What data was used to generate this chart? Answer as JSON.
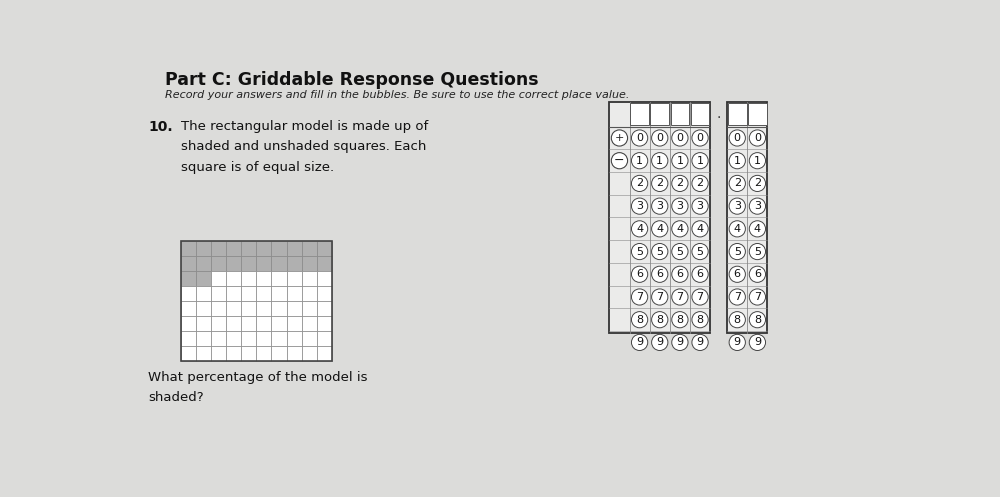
{
  "title": "Part C: Griddable Response Questions",
  "subtitle": "Record your answers and fill in the bubbles. Be sure to use the correct place value.",
  "question_num": "10.",
  "question_text_line1": "The rectangular model is made up of",
  "question_text_line2": "shaded and unshaded squares. Each",
  "question_text_line3": "square is of equal size.",
  "question_bottom_line1": "What percentage of the model is",
  "question_bottom_line2": "shaded?",
  "paper_color": "#dcdcda",
  "shaded_color": "#b0b0b0",
  "unshaded_color": "#ffffff",
  "grid_line_color": "#888888",
  "bubble_border": "#555555",
  "grid_ncols": 10,
  "grid_nrows": 8,
  "digits": [
    "0",
    "1",
    "2",
    "3",
    "4",
    "5",
    "6",
    "7",
    "8",
    "9"
  ]
}
